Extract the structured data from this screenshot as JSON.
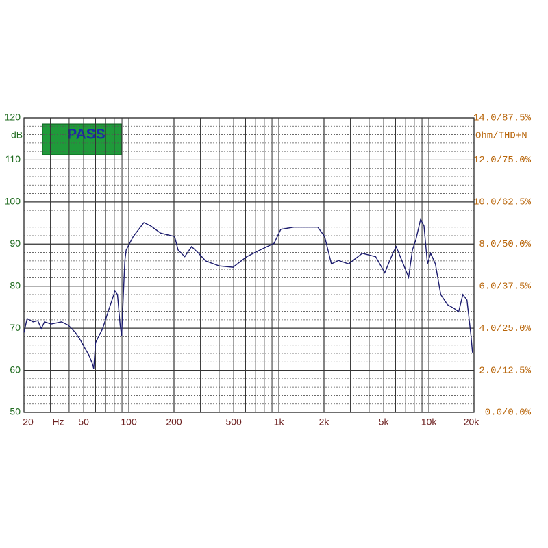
{
  "chart_data": {
    "type": "line",
    "badge_text": "PASS",
    "y_label": "dB",
    "y2_label": "Ohm/THD+N",
    "x_unit": "Hz",
    "x_log": true,
    "xlim": [
      20,
      20000
    ],
    "xticks": [
      20,
      50,
      100,
      200,
      500,
      {
        "value": 1000,
        "label": "1k"
      },
      {
        "value": 2000,
        "label": "2k"
      },
      {
        "value": 5000,
        "label": "5k"
      },
      {
        "value": 10000,
        "label": "10k"
      },
      {
        "value": 20000,
        "label": "20k"
      }
    ],
    "xgrid": [
      30,
      40,
      60,
      70,
      80,
      90,
      300,
      400,
      600,
      700,
      800,
      900,
      3000,
      4000,
      6000,
      7000,
      8000,
      9000
    ],
    "ylim": [
      50,
      120
    ],
    "yticks": [
      50,
      60,
      70,
      80,
      90,
      100,
      110,
      120
    ],
    "yminor": [
      52,
      54,
      56,
      58,
      62,
      64,
      66,
      68,
      72,
      74,
      76,
      78,
      82,
      84,
      86,
      88,
      92,
      94,
      96,
      98,
      102,
      104,
      106,
      108,
      112,
      114,
      116,
      118
    ],
    "y2lim": [
      0,
      14
    ],
    "y2ticks": [
      {
        "value": 0,
        "label": "0.0/0.0%"
      },
      {
        "value": 2,
        "label": "2.0/12.5%"
      },
      {
        "value": 4,
        "label": "4.0/25.0%"
      },
      {
        "value": 6,
        "label": "6.0/37.5%"
      },
      {
        "value": 8,
        "label": "8.0/50.0%"
      },
      {
        "value": 10,
        "label": "10.0/62.5%"
      },
      {
        "value": 12,
        "label": "12.0/75.0%"
      },
      {
        "value": 14,
        "label": "14.0/87.5%"
      }
    ],
    "x": [
      20,
      21,
      23,
      24.7,
      26.1,
      27.4,
      30.4,
      35.6,
      39.5,
      44,
      47.9,
      51.4,
      54,
      57,
      58.3,
      60,
      66.9,
      74,
      80.8,
      84,
      87.5,
      89.5,
      94,
      96,
      107,
      126,
      140,
      163,
      202,
      213,
      236,
      262,
      292,
      325,
      400,
      495,
      610,
      750,
      930,
      1030,
      1260,
      1820,
      2020,
      2240,
      2500,
      2920,
      3600,
      4420,
      5080,
      5750,
      6060,
      6600,
      7330,
      7770,
      8190,
      8810,
      9280,
      9780,
      10280,
      11050,
      12000,
      13300,
      14750,
      15800,
      16850,
      17950,
      19100,
      19550
    ],
    "series": [
      {
        "color": "#1c1c6e",
        "values": [
          69,
          72.3,
          71.5,
          71.8,
          69.9,
          71.5,
          71,
          71.5,
          70.7,
          69,
          67,
          65,
          63.7,
          61.7,
          60.4,
          66.6,
          69.9,
          74.7,
          78.8,
          78,
          70.7,
          68.2,
          86,
          88.6,
          91.8,
          95.1,
          94.3,
          92.6,
          91.8,
          88.6,
          87,
          89.4,
          87.8,
          86,
          84.8,
          84.5,
          87,
          88.6,
          90.2,
          93.5,
          94,
          94,
          91.8,
          85.3,
          86.1,
          85.3,
          87.8,
          87,
          83.2,
          87.8,
          89.4,
          86.1,
          82.1,
          88.6,
          91,
          95.9,
          94.3,
          85.3,
          87.8,
          85.3,
          78,
          75.6,
          74.7,
          73.9,
          78,
          76.7,
          68.2,
          64.2
        ]
      }
    ]
  }
}
